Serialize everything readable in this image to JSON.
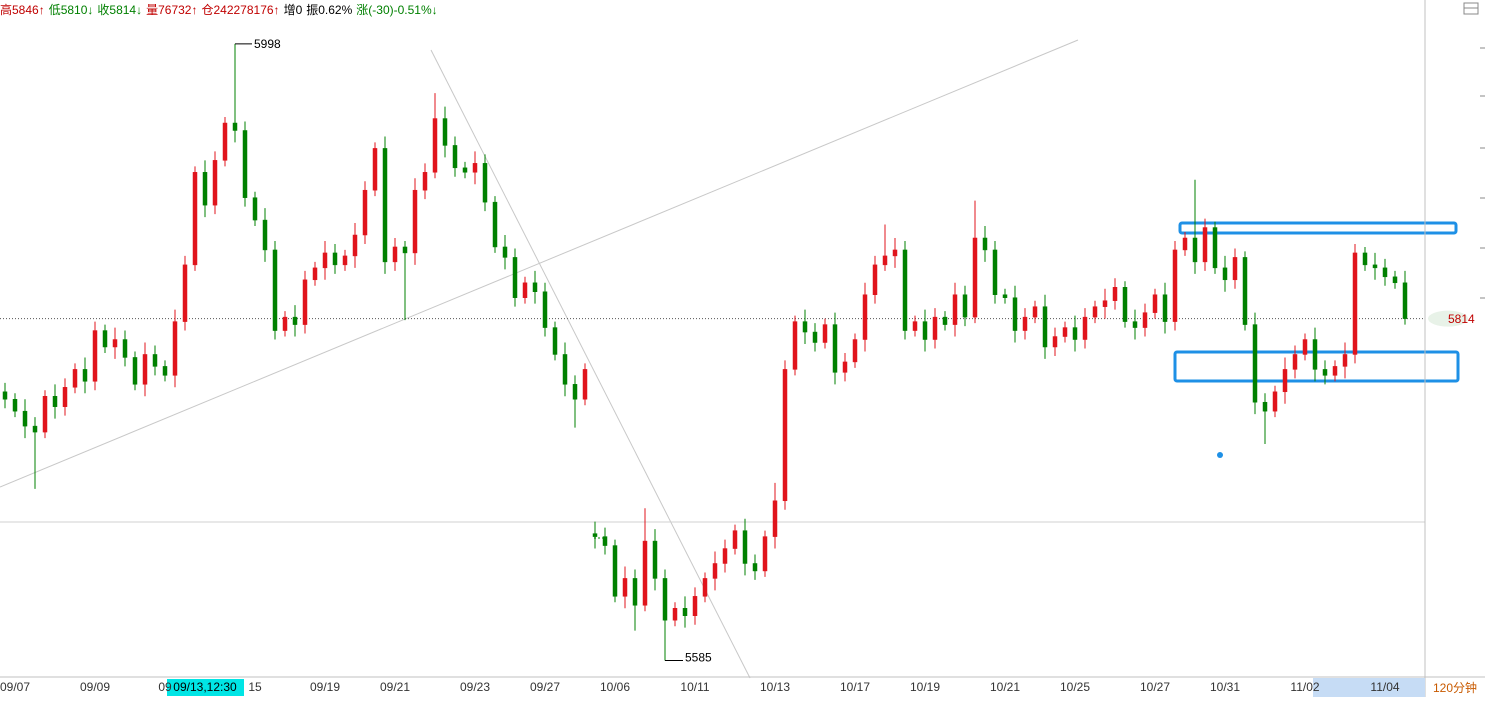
{
  "chart_data": {
    "type": "candlestick",
    "header": [
      {
        "text": "高5846↑",
        "color": "#c00000"
      },
      {
        "text": "低5810↓",
        "color": "#008000"
      },
      {
        "text": "收5814↓",
        "color": "#008000"
      },
      {
        "text": "量76732↑",
        "color": "#c00000"
      },
      {
        "text": "仓242278176↑",
        "color": "#c00000"
      },
      {
        "text": "增0",
        "color": "#000000"
      },
      {
        "text": "振0.62%",
        "color": "#000000"
      },
      {
        "text": "涨(-30)-0.51%↓",
        "color": "#008000"
      }
    ],
    "cursor_label": "09/13,12:30",
    "period": "120分钟",
    "up_color": "#e0141c",
    "down_color": "#008000",
    "ylim": [
      5580,
      6014
    ],
    "categories": [
      null,
      "09/07",
      null,
      null,
      null,
      null,
      null,
      null,
      null,
      "09/09",
      null,
      null,
      null,
      null,
      null,
      null,
      "09",
      null,
      null,
      null,
      null,
      null,
      null,
      null,
      null,
      "15",
      null,
      null,
      null,
      null,
      null,
      null,
      "09/19",
      null,
      null,
      null,
      null,
      null,
      null,
      "09/21",
      null,
      null,
      null,
      null,
      null,
      null,
      null,
      "09/23",
      null,
      null,
      null,
      null,
      null,
      null,
      "09/27",
      null,
      null,
      null,
      null,
      null,
      null,
      "10/06",
      null,
      null,
      null,
      null,
      null,
      null,
      null,
      "10/11",
      null,
      null,
      null,
      null,
      null,
      null,
      null,
      "10/13",
      null,
      null,
      null,
      null,
      null,
      null,
      null,
      "10/17",
      null,
      null,
      null,
      null,
      null,
      null,
      "10/19",
      null,
      null,
      null,
      null,
      null,
      null,
      null,
      "10/21",
      null,
      null,
      null,
      null,
      null,
      null,
      "10/25",
      null,
      null,
      null,
      null,
      null,
      null,
      null,
      "10/27",
      null,
      null,
      null,
      null,
      null,
      null,
      "10/31",
      null,
      null,
      null,
      null,
      null,
      null,
      null,
      "11/02",
      null,
      null,
      null,
      null,
      null,
      null,
      null,
      "11/04",
      null,
      null
    ],
    "open": [
      5765,
      5760,
      5752,
      5742,
      5738,
      5762,
      5755,
      5768,
      5780,
      5772,
      5806,
      5795,
      5800,
      5788,
      5770,
      5790,
      5782,
      5776,
      5812,
      5850,
      5912,
      5890,
      5920,
      5945,
      5940,
      5895,
      5880,
      5860,
      5806,
      5815,
      5810,
      5840,
      5848,
      5858,
      5850,
      5856,
      5870,
      5900,
      5928,
      5852,
      5862,
      5858,
      5900,
      5912,
      5948,
      5930,
      5915,
      5912,
      5918,
      5892,
      5862,
      5855,
      5828,
      5838,
      5832,
      5808,
      5790,
      5770,
      5760,
      5670,
      5668,
      5662,
      5628,
      5640,
      5622,
      5665,
      5640,
      5612,
      5620,
      5615,
      5628,
      5640,
      5650,
      5660,
      5672,
      5650,
      5645,
      5668,
      5692,
      5780,
      5812,
      5805,
      5798,
      5810,
      5778,
      5785,
      5800,
      5830,
      5850,
      5856,
      5860,
      5806,
      5812,
      5800,
      5815,
      5810,
      5830,
      5815,
      5868,
      5860,
      5830,
      5828,
      5806,
      5815,
      5822,
      5795,
      5802,
      5808,
      5800,
      5815,
      5822,
      5826,
      5835,
      5812,
      5808,
      5818,
      5830,
      5812,
      5860,
      5868,
      5852,
      5875,
      5848,
      5840,
      5855,
      5810,
      5758,
      5752,
      5765,
      5780,
      5790,
      5800,
      5780,
      5776,
      5782,
      5790,
      5858,
      5850,
      5848,
      5842,
      5838
    ],
    "high": [
      5771,
      5764,
      5760,
      5748,
      5766,
      5770,
      5774,
      5784,
      5788,
      5812,
      5810,
      5808,
      5806,
      5792,
      5798,
      5796,
      5786,
      5820,
      5856,
      5916,
      5920,
      5926,
      5949,
      5998,
      5946,
      5899,
      5888,
      5866,
      5819,
      5823,
      5846,
      5852,
      5866,
      5864,
      5860,
      5878,
      5906,
      5932,
      5936,
      5868,
      5866,
      5908,
      5918,
      5965,
      5956,
      5936,
      5919,
      5926,
      5924,
      5896,
      5870,
      5861,
      5842,
      5846,
      5838,
      5812,
      5798,
      5776,
      5784,
      5678,
      5674,
      5666,
      5648,
      5646,
      5687,
      5673,
      5646,
      5624,
      5628,
      5634,
      5644,
      5658,
      5666,
      5676,
      5680,
      5656,
      5672,
      5704,
      5786,
      5816,
      5820,
      5811,
      5814,
      5818,
      5791,
      5804,
      5838,
      5856,
      5877,
      5868,
      5866,
      5816,
      5820,
      5821,
      5819,
      5838,
      5836,
      5893,
      5876,
      5866,
      5834,
      5836,
      5821,
      5826,
      5830,
      5808,
      5812,
      5816,
      5821,
      5826,
      5834,
      5841,
      5839,
      5820,
      5824,
      5834,
      5838,
      5866,
      5872,
      5907,
      5881,
      5879,
      5856,
      5861,
      5859,
      5818,
      5764,
      5769,
      5788,
      5796,
      5804,
      5808,
      5786,
      5786,
      5798,
      5864,
      5862,
      5858,
      5854,
      5846,
      5846
    ],
    "low": [
      5754,
      5748,
      5734,
      5700,
      5734,
      5747,
      5749,
      5764,
      5764,
      5766,
      5791,
      5787,
      5782,
      5766,
      5762,
      5776,
      5772,
      5768,
      5806,
      5846,
      5882,
      5884,
      5916,
      5932,
      5889,
      5876,
      5852,
      5800,
      5802,
      5802,
      5804,
      5836,
      5840,
      5844,
      5846,
      5848,
      5864,
      5896,
      5844,
      5846,
      5813,
      5850,
      5894,
      5908,
      5922,
      5909,
      5908,
      5904,
      5886,
      5858,
      5847,
      5822,
      5824,
      5824,
      5802,
      5786,
      5762,
      5741,
      5756,
      5660,
      5656,
      5624,
      5620,
      5605,
      5618,
      5632,
      5585,
      5608,
      5607,
      5609,
      5624,
      5632,
      5644,
      5656,
      5642,
      5639,
      5641,
      5660,
      5686,
      5776,
      5797,
      5792,
      5794,
      5770,
      5772,
      5781,
      5792,
      5824,
      5846,
      5848,
      5800,
      5802,
      5792,
      5794,
      5806,
      5802,
      5809,
      5811,
      5852,
      5824,
      5824,
      5798,
      5800,
      5811,
      5787,
      5789,
      5798,
      5792,
      5794,
      5811,
      5814,
      5820,
      5808,
      5800,
      5802,
      5814,
      5804,
      5806,
      5856,
      5844,
      5846,
      5844,
      5832,
      5834,
      5806,
      5750,
      5730,
      5748,
      5757,
      5774,
      5786,
      5772,
      5770,
      5772,
      5774,
      5784,
      5846,
      5840,
      5836,
      5834,
      5810
    ],
    "close": [
      5760,
      5752,
      5742,
      5738,
      5762,
      5755,
      5768,
      5780,
      5772,
      5806,
      5795,
      5800,
      5788,
      5770,
      5790,
      5782,
      5776,
      5812,
      5850,
      5912,
      5890,
      5920,
      5945,
      5940,
      5895,
      5880,
      5860,
      5806,
      5815,
      5810,
      5840,
      5848,
      5858,
      5850,
      5856,
      5870,
      5900,
      5928,
      5852,
      5862,
      5858,
      5900,
      5912,
      5948,
      5930,
      5915,
      5912,
      5918,
      5892,
      5862,
      5855,
      5828,
      5838,
      5832,
      5808,
      5790,
      5770,
      5760,
      5780,
      5668,
      5662,
      5628,
      5640,
      5622,
      5665,
      5640,
      5612,
      5620,
      5615,
      5628,
      5640,
      5650,
      5660,
      5672,
      5650,
      5645,
      5668,
      5692,
      5780,
      5812,
      5805,
      5798,
      5810,
      5778,
      5785,
      5800,
      5830,
      5850,
      5856,
      5860,
      5806,
      5812,
      5800,
      5815,
      5810,
      5830,
      5815,
      5868,
      5860,
      5830,
      5828,
      5806,
      5815,
      5822,
      5795,
      5802,
      5808,
      5800,
      5815,
      5822,
      5826,
      5835,
      5812,
      5808,
      5818,
      5830,
      5812,
      5860,
      5868,
      5852,
      5875,
      5848,
      5840,
      5855,
      5810,
      5758,
      5752,
      5765,
      5780,
      5790,
      5800,
      5780,
      5776,
      5782,
      5790,
      5858,
      5850,
      5848,
      5842,
      5838,
      5814
    ]
  }
}
